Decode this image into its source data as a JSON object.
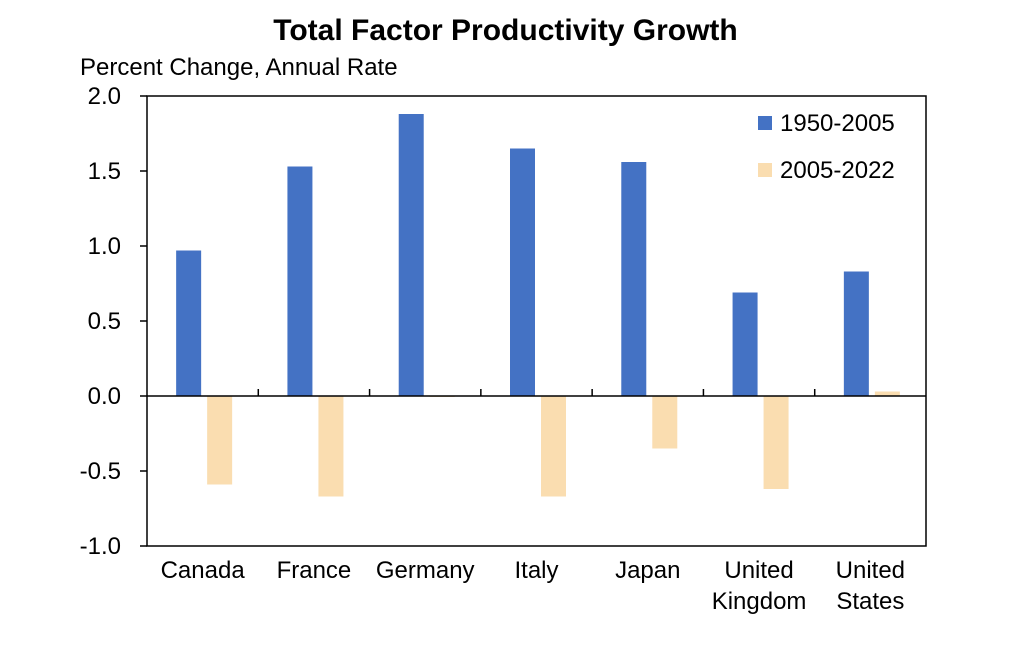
{
  "chart_data": {
    "type": "bar",
    "title": "Total Factor Productivity  Growth",
    "ylabel": "Percent Change, Annual Rate",
    "xlabel": "",
    "categories": [
      [
        "Canada"
      ],
      [
        "France"
      ],
      [
        "Germany"
      ],
      [
        "Italy"
      ],
      [
        "Japan"
      ],
      [
        "United",
        "Kingdom"
      ],
      [
        "United",
        "States"
      ]
    ],
    "series": [
      {
        "name": "1950-2005",
        "color": "#4472C4",
        "values": [
          0.97,
          1.53,
          1.88,
          1.65,
          1.56,
          0.69,
          0.83
        ]
      },
      {
        "name": "2005-2022",
        "color": "#FADDB0",
        "values": [
          -0.59,
          -0.67,
          0.0,
          -0.67,
          -0.35,
          -0.62,
          0.03
        ]
      }
    ],
    "ylim": [
      -1.0,
      2.0
    ],
    "yticks": [
      "2.0",
      "1.5",
      "1.0",
      "0.5",
      "0.0",
      "-0.5",
      "-1.0"
    ],
    "ytick_values": [
      2.0,
      1.5,
      1.0,
      0.5,
      0.0,
      -0.5,
      -1.0
    ],
    "grid": false,
    "legend_position": "top-right"
  }
}
